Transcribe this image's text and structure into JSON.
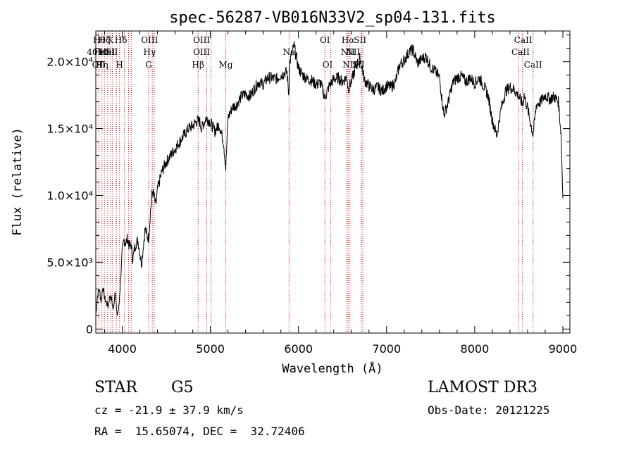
{
  "chart_data": {
    "type": "line",
    "title": "spec-56287-VB016N33V2_sp04-131.fits",
    "xlabel": "Wavelength (Å)",
    "ylabel": "Flux (relative)",
    "xlim": [
      3700,
      9080
    ],
    "ylim": [
      -300,
      22300
    ],
    "x_ticks": [
      {
        "value": 4000,
        "label": "4000"
      },
      {
        "value": 5000,
        "label": "5000"
      },
      {
        "value": 6000,
        "label": "6000"
      },
      {
        "value": 7000,
        "label": "7000"
      },
      {
        "value": 8000,
        "label": "8000"
      },
      {
        "value": 9000,
        "label": "9000"
      }
    ],
    "y_ticks": [
      {
        "value": 0,
        "label": "0"
      },
      {
        "value": 5000,
        "label": "5.0×10³"
      },
      {
        "value": 10000,
        "label": "1.0×10⁴"
      },
      {
        "value": 15000,
        "label": "1.5×10⁴"
      },
      {
        "value": 20000,
        "label": "2.0×10⁴"
      }
    ],
    "line_color": "#000000",
    "marker_color": "#cc0000",
    "series": [
      {
        "x": [
          3700,
          3720,
          3740,
          3760,
          3780,
          3800,
          3820,
          3840,
          3860,
          3880,
          3900,
          3920,
          3940,
          3960,
          3980,
          4000,
          4020,
          4040,
          4060,
          4080,
          4100,
          4120,
          4140,
          4160,
          4180,
          4200,
          4220,
          4240,
          4260,
          4280,
          4300,
          4320,
          4340,
          4360,
          4380,
          4400,
          4450,
          4500,
          4550,
          4600,
          4650,
          4700,
          4750,
          4800,
          4850,
          4880,
          4900,
          4950,
          5000,
          5050,
          5100,
          5150,
          5175,
          5200,
          5250,
          5300,
          5350,
          5400,
          5450,
          5500,
          5550,
          5600,
          5650,
          5700,
          5750,
          5800,
          5850,
          5870,
          5890,
          5900,
          5920,
          5950,
          6000,
          6050,
          6100,
          6150,
          6200,
          6250,
          6300,
          6350,
          6400,
          6450,
          6500,
          6550,
          6563,
          6600,
          6650,
          6700,
          6750,
          6800,
          6850,
          6900,
          6950,
          7000,
          7050,
          7100,
          7150,
          7200,
          7250,
          7300,
          7350,
          7400,
          7450,
          7500,
          7550,
          7600,
          7650,
          7700,
          7750,
          7800,
          7850,
          7900,
          7950,
          8000,
          8050,
          8100,
          8150,
          8200,
          8250,
          8300,
          8350,
          8400,
          8450,
          8500,
          8542,
          8560,
          8600,
          8662,
          8700,
          8750,
          8800,
          8850,
          8900,
          8950,
          8980,
          9000
        ],
        "y": [
          1000,
          2500,
          3000,
          2100,
          3200,
          2300,
          2000,
          1700,
          2500,
          2200,
          1400,
          3000,
          1000,
          1500,
          3500,
          5800,
          6700,
          6400,
          6800,
          6200,
          6300,
          5200,
          6000,
          6500,
          6600,
          5700,
          4800,
          6300,
          7500,
          7000,
          6800,
          8800,
          10300,
          10000,
          9200,
          10400,
          11800,
          12500,
          13000,
          13500,
          14000,
          14500,
          15000,
          15200,
          15600,
          15500,
          15000,
          15800,
          15500,
          14800,
          15300,
          14000,
          12000,
          15800,
          16600,
          16800,
          17400,
          17600,
          17400,
          18000,
          18500,
          18300,
          18800,
          18800,
          18700,
          19000,
          19200,
          19200,
          17500,
          19900,
          20500,
          21200,
          19500,
          19000,
          18700,
          18600,
          18300,
          18400,
          17300,
          18200,
          18700,
          18800,
          18500,
          18900,
          18000,
          18500,
          19600,
          20300,
          18600,
          18200,
          17900,
          18100,
          17800,
          18200,
          18100,
          18500,
          19800,
          20100,
          20700,
          20900,
          19900,
          20200,
          20400,
          19600,
          19300,
          18800,
          16000,
          17000,
          18400,
          18800,
          18900,
          18500,
          18800,
          18400,
          18800,
          18200,
          17500,
          15600,
          14500,
          16500,
          17800,
          18100,
          17900,
          17400,
          16800,
          17500,
          16500,
          14500,
          16800,
          17000,
          17500,
          17200,
          17400,
          17000,
          14600,
          9800
        ]
      }
    ],
    "lines": [
      {
        "x": 3734,
        "labels": [
          "",
          "",
          "OII"
        ]
      },
      {
        "x": 3770,
        "labels": [
          "",
          "",
          "Hη"
        ]
      },
      {
        "x": 3798,
        "labels": [
          "",
          "",
          ""
        ]
      },
      {
        "x": 3835,
        "labels": [
          "",
          "",
          ""
        ]
      },
      {
        "x": 3869,
        "labels": [
          "",
          "",
          ""
        ]
      },
      {
        "x": 3889,
        "labels": [
          "",
          "",
          ""
        ]
      },
      {
        "x": 3934,
        "labels": [
          "",
          "",
          ""
        ]
      },
      {
        "x": 3969,
        "labels": [
          "",
          "",
          "H"
        ]
      },
      {
        "x": 4026,
        "labels": [
          "",
          "",
          ""
        ]
      },
      {
        "x": 4072,
        "labels": [
          "",
          "",
          ""
        ]
      },
      {
        "x": 4102,
        "labels": [
          "",
          "",
          ""
        ]
      },
      {
        "x": 4300,
        "labels": [
          "",
          "",
          "G"
        ]
      },
      {
        "x": 4341,
        "labels": [
          "",
          "",
          ""
        ]
      },
      {
        "x": 4363,
        "labels": [
          "",
          "",
          ""
        ]
      },
      {
        "x": 4861,
        "labels": [
          "",
          "",
          "Hβ"
        ]
      },
      {
        "x": 4959,
        "labels": [
          "",
          "",
          ""
        ]
      },
      {
        "x": 5007,
        "labels": [
          "",
          "",
          ""
        ]
      },
      {
        "x": 5175,
        "labels": [
          "",
          "",
          "Mg"
        ]
      },
      {
        "x": 5893,
        "labels": [
          "",
          "",
          ""
        ]
      },
      {
        "x": 6300,
        "labels": [
          "",
          "",
          ""
        ]
      },
      {
        "x": 6364,
        "labels": [
          "",
          "",
          ""
        ]
      },
      {
        "x": 6548,
        "labels": [
          "",
          "",
          ""
        ]
      },
      {
        "x": 6563,
        "labels": [
          "",
          "",
          ""
        ]
      },
      {
        "x": 6584,
        "labels": [
          "",
          "",
          ""
        ]
      },
      {
        "x": 6716,
        "labels": [
          "",
          "",
          ""
        ]
      },
      {
        "x": 6731,
        "labels": [
          "",
          "",
          ""
        ]
      },
      {
        "x": 8498,
        "labels": [
          "",
          "",
          ""
        ]
      },
      {
        "x": 8542,
        "labels": [
          "",
          "",
          ""
        ]
      },
      {
        "x": 8662,
        "labels": [
          "",
          "",
          "CaII"
        ]
      }
    ],
    "line_labels": [
      {
        "x": 3740,
        "row": 1,
        "text": "Hθ"
      },
      {
        "x": 3795,
        "row": 1,
        "text": "Hζ"
      },
      {
        "x": 3869,
        "row": 1,
        "text": "K"
      },
      {
        "x": 3985,
        "row": 1,
        "text": "Hδ"
      },
      {
        "x": 4310,
        "row": 1,
        "text": "OIII"
      },
      {
        "x": 4900,
        "row": 1,
        "text": "OIII"
      },
      {
        "x": 6300,
        "row": 1,
        "text": "OI"
      },
      {
        "x": 6563,
        "row": 1,
        "text": "Hα"
      },
      {
        "x": 6700,
        "row": 1,
        "text": "SII"
      },
      {
        "x": 8550,
        "row": 1,
        "text": "CaII"
      },
      {
        "x": 3720,
        "row": 2,
        "text": "4010"
      },
      {
        "x": 3765,
        "row": 2,
        "text": "HeI"
      },
      {
        "x": 3830,
        "row": 2,
        "text": "HeI"
      },
      {
        "x": 3880,
        "row": 2,
        "text": "SII"
      },
      {
        "x": 4310,
        "row": 2,
        "text": "Hγ"
      },
      {
        "x": 4900,
        "row": 2,
        "text": "OIII"
      },
      {
        "x": 5893,
        "row": 2,
        "text": "Na"
      },
      {
        "x": 6560,
        "row": 2,
        "text": "NII"
      },
      {
        "x": 6620,
        "row": 2,
        "text": "NII"
      },
      {
        "x": 8520,
        "row": 2,
        "text": "CaII"
      },
      {
        "x": 6330,
        "row": 3,
        "text": "OI"
      },
      {
        "x": 6580,
        "row": 3,
        "text": "NII"
      },
      {
        "x": 6680,
        "row": 3,
        "text": "SII"
      }
    ]
  },
  "footer": {
    "class_label": "STAR",
    "subclass": "G5",
    "survey": "LAMOST DR3",
    "cz": "cz = -21.9 ± 37.9 km/s",
    "obs_date": "Obs-Date: 20121225",
    "coords": "RA =  15.65074, DEC =  32.72406"
  }
}
